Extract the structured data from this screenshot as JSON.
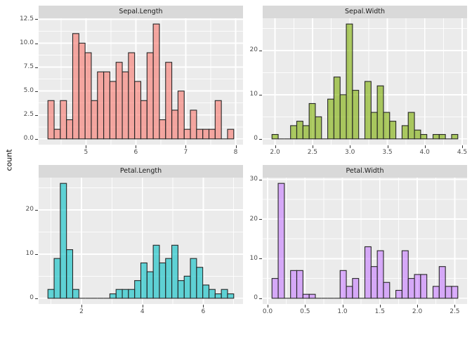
{
  "ylabel": "count",
  "colors": {
    "page_bg": "#FFFFFF",
    "panel_bg": "#EBEBEB",
    "grid_major": "#FFFFFF",
    "grid_minor": "#FFFFFF",
    "strip_bg": "#D9D9D9",
    "strip_text": "#1A1A1A",
    "tick_label": "#4D4D4D",
    "tick_mark": "#333333",
    "bar_stroke": "#262626"
  },
  "chart_data": [
    {
      "type": "histogram",
      "title": "Sepal.Length",
      "fill_base": "#F8766D",
      "fill_alpha": 0.6,
      "bin_left": 4.237931,
      "binwidth": 0.1241379,
      "counts": [
        4,
        1,
        4,
        2,
        11,
        10,
        9,
        4,
        7,
        7,
        6,
        8,
        7,
        9,
        6,
        4,
        9,
        12,
        2,
        8,
        3,
        5,
        1,
        3,
        1,
        1,
        1,
        4,
        0,
        1
      ],
      "xlim": [
        4.0517,
        8.1483
      ],
      "ylim": [
        -0.6,
        12.6
      ],
      "x_ticks": [
        5,
        6,
        7,
        8
      ],
      "x_tick_labels": [
        "5",
        "6",
        "7",
        "8"
      ],
      "y_ticks": [
        0,
        2.5,
        5,
        7.5,
        10,
        12.5
      ],
      "y_tick_labels": [
        "0.0",
        "2.5",
        "5.0",
        "7.5",
        "10.0",
        "12.5"
      ],
      "x_minor": [
        4.5,
        5.5,
        6.5,
        7.5
      ],
      "y_minor": [
        1.25,
        3.75,
        6.25,
        8.75,
        11.25
      ]
    },
    {
      "type": "histogram",
      "title": "Sepal.Width",
      "fill_base": "#7CAE00",
      "fill_alpha": 0.6,
      "bin_left": 1.9586207,
      "binwidth": 0.0827586,
      "counts": [
        1,
        0,
        0,
        3,
        4,
        3,
        8,
        5,
        0,
        9,
        14,
        10,
        26,
        11,
        0,
        13,
        6,
        12,
        6,
        4,
        0,
        3,
        6,
        2,
        1,
        0,
        1,
        1,
        0,
        1
      ],
      "xlim": [
        1.8345,
        4.5655
      ],
      "ylim": [
        -1.3,
        27.3
      ],
      "x_ticks": [
        2.0,
        2.5,
        3.0,
        3.5,
        4.0,
        4.5
      ],
      "x_tick_labels": [
        "2.0",
        "2.5",
        "3.0",
        "3.5",
        "4.0",
        "4.5"
      ],
      "y_ticks": [
        0,
        10,
        20
      ],
      "y_tick_labels": [
        "0",
        "10",
        "20"
      ],
      "x_minor": [
        2.25,
        2.75,
        3.25,
        3.75,
        4.25
      ],
      "y_minor": [
        5,
        15,
        25
      ]
    },
    {
      "type": "histogram",
      "title": "Petal.Length",
      "fill_base": "#00BFC4",
      "fill_alpha": 0.6,
      "bin_left": 0.8982759,
      "binwidth": 0.2034483,
      "counts": [
        2,
        9,
        26,
        11,
        2,
        0,
        0,
        0,
        0,
        0,
        1,
        2,
        2,
        2,
        4,
        8,
        6,
        12,
        8,
        9,
        12,
        4,
        5,
        9,
        7,
        3,
        2,
        1,
        2,
        1
      ],
      "xlim": [
        0.5931,
        7.3069
      ],
      "ylim": [
        -1.3,
        27.3
      ],
      "x_ticks": [
        2,
        4,
        6
      ],
      "x_tick_labels": [
        "2",
        "4",
        "6"
      ],
      "y_ticks": [
        0,
        10,
        20
      ],
      "y_tick_labels": [
        "0",
        "10",
        "20"
      ],
      "x_minor": [
        1,
        3,
        5,
        7
      ],
      "y_minor": [
        5,
        15,
        25
      ]
    },
    {
      "type": "histogram",
      "title": "Petal.Width",
      "fill_base": "#C77CFF",
      "fill_alpha": 0.6,
      "bin_left": 0.0586207,
      "binwidth": 0.0827586,
      "counts": [
        5,
        29,
        0,
        7,
        7,
        1,
        1,
        0,
        0,
        0,
        0,
        7,
        3,
        5,
        0,
        13,
        8,
        12,
        4,
        0,
        2,
        12,
        5,
        6,
        6,
        0,
        3,
        8,
        3,
        3
      ],
      "xlim": [
        -0.0655,
        2.6655
      ],
      "ylim": [
        -1.45,
        30.45
      ],
      "x_ticks": [
        0.0,
        0.5,
        1.0,
        1.5,
        2.0,
        2.5
      ],
      "x_tick_labels": [
        "0.0",
        "0.5",
        "1.0",
        "1.5",
        "2.0",
        "2.5"
      ],
      "y_ticks": [
        0,
        10,
        20,
        30
      ],
      "y_tick_labels": [
        "0",
        "10",
        "20",
        "30"
      ],
      "x_minor": [
        0.25,
        0.75,
        1.25,
        1.75,
        2.25
      ],
      "y_minor": [
        5,
        15,
        25
      ]
    }
  ]
}
